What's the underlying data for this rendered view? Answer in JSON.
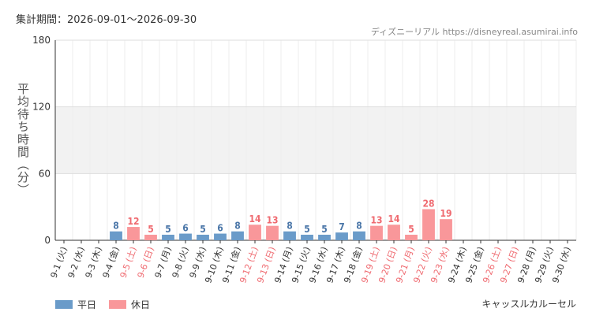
{
  "header": {
    "period_label": "集計期間：2026-09-01～2026-09-30",
    "credit": "ディズニーリアル https://disneyreal.asumirai.info"
  },
  "legend": {
    "weekday_label": "平日",
    "holiday_label": "休日",
    "series_note": "キャッスルカルーセル"
  },
  "colors": {
    "weekday": "#6a9bc9",
    "holiday": "#f9979a",
    "weekday_text": "#4a76a8",
    "holiday_text": "#ef6a70",
    "band": "#f2f2f2",
    "grid": "#dddddd"
  },
  "chart_data": {
    "type": "bar",
    "ylabel": "平均待ち時間（分）",
    "ylim": [
      0,
      180
    ],
    "yticks": [
      0,
      60,
      120,
      180
    ],
    "shaded_band": [
      60,
      120
    ],
    "categories": [
      "9-1 (火)",
      "9-2 (水)",
      "9-3 (木)",
      "9-4 (金)",
      "9-5 (土)",
      "9-6 (日)",
      "9-7 (月)",
      "9-8 (火)",
      "9-9 (水)",
      "9-10 (木)",
      "9-11 (金)",
      "9-12 (土)",
      "9-13 (日)",
      "9-14 (月)",
      "9-15 (火)",
      "9-16 (水)",
      "9-17 (木)",
      "9-18 (金)",
      "9-19 (土)",
      "9-20 (日)",
      "9-21 (月)",
      "9-22 (火)",
      "9-23 (水)",
      "9-24 (木)",
      "9-25 (金)",
      "9-26 (土)",
      "9-27 (日)",
      "9-28 (月)",
      "9-29 (火)",
      "9-30 (水)"
    ],
    "values": [
      null,
      null,
      null,
      8,
      12,
      5,
      5,
      6,
      5,
      6,
      8,
      14,
      13,
      8,
      5,
      5,
      7,
      8,
      13,
      14,
      5,
      28,
      19,
      null,
      null,
      null,
      null,
      null,
      null,
      null
    ],
    "day_type": [
      "weekday",
      "weekday",
      "weekday",
      "weekday",
      "holiday",
      "holiday",
      "weekday",
      "weekday",
      "weekday",
      "weekday",
      "weekday",
      "holiday",
      "holiday",
      "weekday",
      "weekday",
      "weekday",
      "weekday",
      "weekday",
      "holiday",
      "holiday",
      "holiday",
      "holiday",
      "holiday",
      "weekday",
      "weekday",
      "holiday",
      "holiday",
      "weekday",
      "weekday",
      "weekday"
    ],
    "legend_position": "bottom-left"
  }
}
